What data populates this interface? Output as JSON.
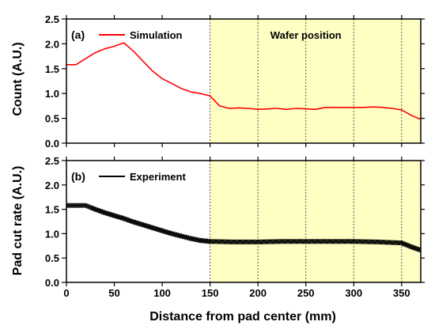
{
  "figure": {
    "xlabel": "Distance from pad center (mm)",
    "shaded_region_label": "Wafer position",
    "shade_color": "#ffffc4"
  },
  "chart_data": [
    {
      "type": "line",
      "panel_label": "(a)",
      "legend_label": "Simulation",
      "ylabel": "Count (A.U.)",
      "color": "#ff0000",
      "xlim": [
        0,
        370
      ],
      "ylim": [
        0.0,
        2.5
      ],
      "xticks": [
        0,
        50,
        100,
        150,
        200,
        250,
        300,
        350
      ],
      "yticks": [
        0.0,
        0.5,
        1.0,
        1.5,
        2.0,
        2.5
      ],
      "yticklabels": [
        "0.0",
        "0.5",
        "1.0",
        "1.5",
        "2.0",
        "2.5"
      ],
      "xgrid": true,
      "shaded_x_range": [
        150,
        370
      ],
      "series": [
        {
          "name": "Simulation",
          "x": [
            0,
            10,
            20,
            30,
            40,
            50,
            60,
            70,
            80,
            90,
            100,
            110,
            120,
            130,
            140,
            150,
            160,
            170,
            180,
            190,
            200,
            210,
            220,
            230,
            240,
            250,
            260,
            270,
            280,
            290,
            300,
            310,
            320,
            330,
            340,
            350,
            360,
            370
          ],
          "y": [
            1.58,
            1.58,
            1.7,
            1.82,
            1.9,
            1.95,
            2.02,
            1.85,
            1.65,
            1.45,
            1.3,
            1.2,
            1.1,
            1.03,
            1.0,
            0.95,
            0.75,
            0.7,
            0.71,
            0.7,
            0.68,
            0.69,
            0.7,
            0.68,
            0.7,
            0.69,
            0.68,
            0.72,
            0.72,
            0.72,
            0.72,
            0.72,
            0.73,
            0.72,
            0.7,
            0.67,
            0.56,
            0.48
          ]
        }
      ]
    },
    {
      "type": "line",
      "panel_label": "(b)",
      "legend_label": "Experiment",
      "ylabel": "Pad cut rate (A.U.)",
      "color": "#000000",
      "xlim": [
        0,
        370
      ],
      "ylim": [
        0.0,
        2.5
      ],
      "xticks": [
        0,
        50,
        100,
        150,
        200,
        250,
        300,
        350
      ],
      "xticklabels": [
        "0",
        "50",
        "100",
        "150",
        "200",
        "250",
        "300",
        "350"
      ],
      "yticks": [
        0.0,
        0.5,
        1.0,
        1.5,
        2.0,
        2.5
      ],
      "yticklabels": [
        "0.0",
        "0.5",
        "1.0",
        "1.5",
        "2.0",
        "2.5"
      ],
      "xgrid": true,
      "shaded_x_range": [
        150,
        370
      ],
      "series": [
        {
          "name": "Experiment",
          "x": [
            0,
            10,
            20,
            30,
            40,
            50,
            60,
            70,
            80,
            90,
            100,
            110,
            120,
            130,
            140,
            150,
            175,
            200,
            225,
            250,
            275,
            300,
            325,
            350,
            360,
            370
          ],
          "y": [
            1.58,
            1.58,
            1.58,
            1.5,
            1.43,
            1.37,
            1.31,
            1.24,
            1.18,
            1.12,
            1.06,
            1.0,
            0.95,
            0.9,
            0.86,
            0.84,
            0.83,
            0.83,
            0.84,
            0.84,
            0.84,
            0.84,
            0.83,
            0.81,
            0.73,
            0.66
          ]
        }
      ]
    }
  ]
}
